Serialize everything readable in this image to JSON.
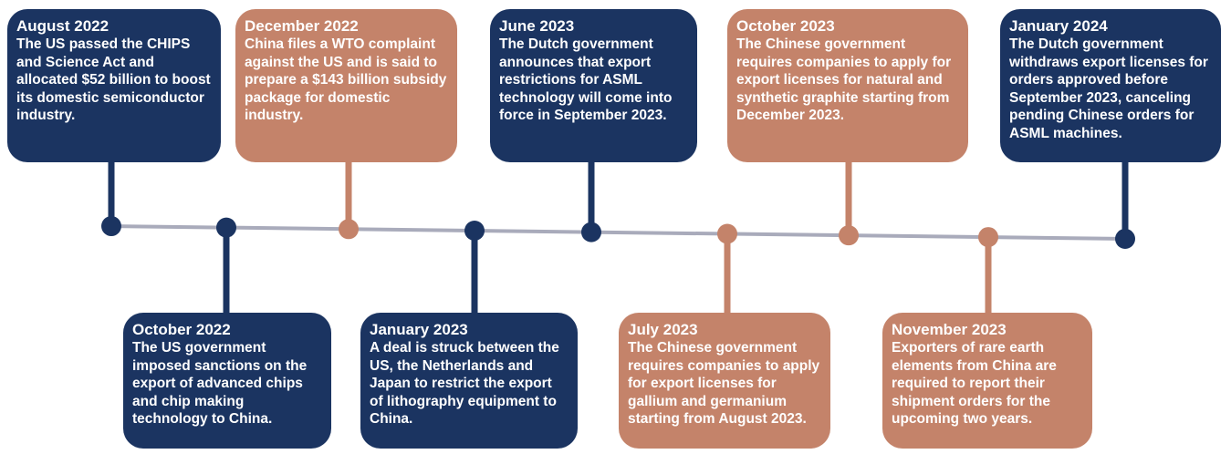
{
  "events": [
    {
      "date": "August 2022",
      "text": "The US passed the CHIPS and Science Act and allocated $52 billion to boost its domestic semiconductor industry."
    },
    {
      "date": "October 2022",
      "text": "The US government imposed sanctions on the export of advanced chips and chip making technology to China."
    },
    {
      "date": "December 2022",
      "text": "China files a WTO complaint against the US and is said to prepare a $143 billion subsidy package for domestic industry."
    },
    {
      "date": "January 2023",
      "text": "A deal is struck between the US, the Netherlands and Japan to restrict the export of lithography equipment to China."
    },
    {
      "date": "June 2023",
      "text": "The Dutch government announces that export restrictions for ASML technology will come into force in September 2023."
    },
    {
      "date": "July 2023",
      "text": "The Chinese government requires companies to apply for export licenses for gallium and germanium starting from August 2023."
    },
    {
      "date": "October 2023",
      "text": "The Chinese government requires companies to apply for export licenses for natural and synthetic graphite starting from December 2023."
    },
    {
      "date": "November 2023",
      "text": "Exporters of rare earth elements from China are required to report their shipment orders for the upcoming two years."
    },
    {
      "date": "January 2024",
      "text": "The Dutch government withdraws export licenses for orders approved before September 2023, canceling pending Chinese orders for ASML machines."
    }
  ]
}
